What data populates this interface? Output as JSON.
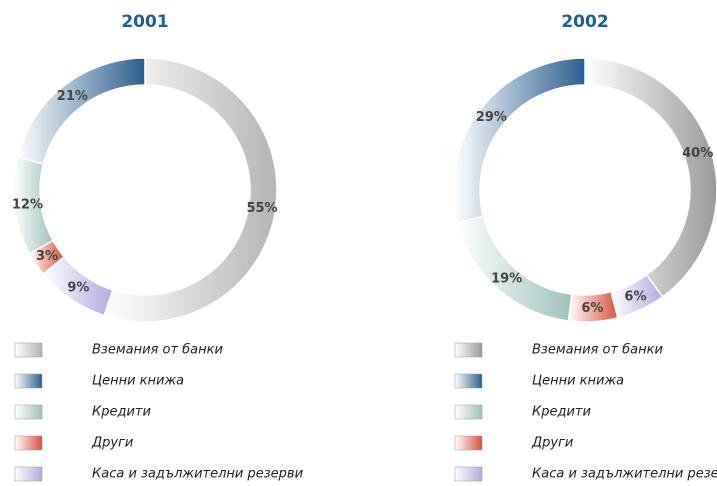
{
  "chart_data": [
    {
      "type": "pie",
      "title": "2001",
      "categories": [
        "Вземания от банки",
        "Ценни книжа",
        "Кредити",
        "Други",
        "Каса и задължителни резерви"
      ],
      "values": [
        55,
        21,
        12,
        3,
        9
      ],
      "value_labels": [
        "55%",
        "21%",
        "12%",
        "3%",
        "9%"
      ],
      "colors": [
        "#b4b4b4",
        "#2a5f8f",
        "#9fc2bd",
        "#d9533a",
        "#b3aade"
      ]
    },
    {
      "type": "pie",
      "title": "2002",
      "categories": [
        "Вземания от банки",
        "Ценни книжа",
        "Кредити",
        "Други",
        "Каса и задължителни резерви"
      ],
      "values": [
        40,
        29,
        19,
        6,
        6
      ],
      "value_labels": [
        "40%",
        "29%",
        "19%",
        "6%",
        "6%"
      ],
      "colors": [
        "#9a9a9a",
        "#2a5f8f",
        "#9fc2bd",
        "#d9533a",
        "#b3aade"
      ]
    }
  ]
}
